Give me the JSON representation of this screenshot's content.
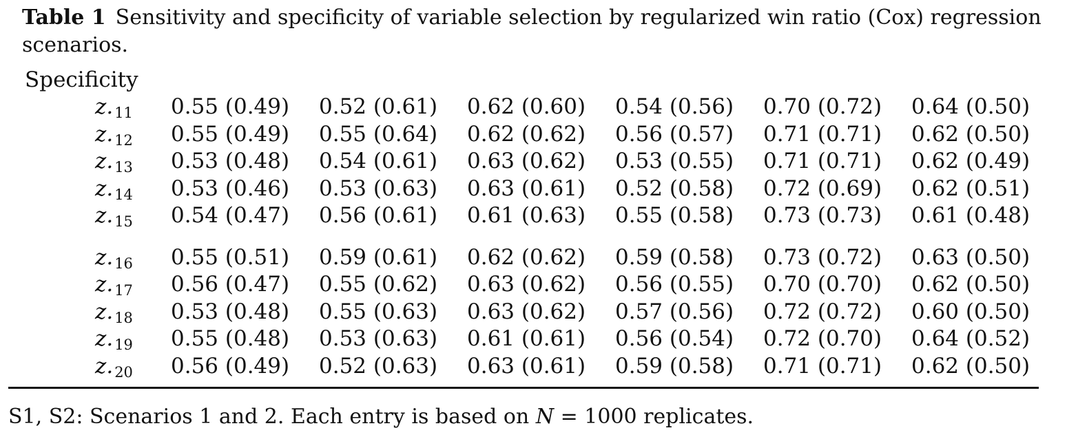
{
  "caption": {
    "label": "Table 1",
    "text_line1": "Sensitivity and specificity of variable selection by regularized win ratio (Cox) regression",
    "text_line2": "scenarios."
  },
  "section_title": "Specificity",
  "rows": [
    {
      "var_base": "z.",
      "var_sub": "11",
      "values": [
        "0.55 (0.49)",
        "0.52 (0.61)",
        "0.62 (0.60)",
        "0.54 (0.56)",
        "0.70 (0.72)",
        "0.64 (0.50)"
      ]
    },
    {
      "var_base": "z.",
      "var_sub": "12",
      "values": [
        "0.55 (0.49)",
        "0.55 (0.64)",
        "0.62 (0.62)",
        "0.56 (0.57)",
        "0.71 (0.71)",
        "0.62 (0.50)"
      ]
    },
    {
      "var_base": "z.",
      "var_sub": "13",
      "values": [
        "0.53 (0.48)",
        "0.54 (0.61)",
        "0.63 (0.62)",
        "0.53 (0.55)",
        "0.71 (0.71)",
        "0.62 (0.49)"
      ]
    },
    {
      "var_base": "z.",
      "var_sub": "14",
      "values": [
        "0.53 (0.46)",
        "0.53 (0.63)",
        "0.63 (0.61)",
        "0.52 (0.58)",
        "0.72 (0.69)",
        "0.62 (0.51)"
      ]
    },
    {
      "var_base": "z.",
      "var_sub": "15",
      "values": [
        "0.54 (0.47)",
        "0.56 (0.61)",
        "0.61 (0.63)",
        "0.55 (0.58)",
        "0.73 (0.73)",
        "0.61 (0.48)"
      ]
    },
    {
      "var_base": "z.",
      "var_sub": "16",
      "values": [
        "0.55 (0.51)",
        "0.59 (0.61)",
        "0.62 (0.62)",
        "0.59 (0.58)",
        "0.73 (0.72)",
        "0.63 (0.50)"
      ]
    },
    {
      "var_base": "z.",
      "var_sub": "17",
      "values": [
        "0.56 (0.47)",
        "0.55 (0.62)",
        "0.63 (0.62)",
        "0.56 (0.55)",
        "0.70 (0.70)",
        "0.62 (0.50)"
      ]
    },
    {
      "var_base": "z.",
      "var_sub": "18",
      "values": [
        "0.53 (0.48)",
        "0.55 (0.63)",
        "0.63 (0.62)",
        "0.57 (0.56)",
        "0.72 (0.72)",
        "0.60 (0.50)"
      ]
    },
    {
      "var_base": "z.",
      "var_sub": "19",
      "values": [
        "0.55 (0.48)",
        "0.53 (0.63)",
        "0.61 (0.61)",
        "0.56 (0.54)",
        "0.72 (0.70)",
        "0.64 (0.52)"
      ]
    },
    {
      "var_base": "z.",
      "var_sub": "20",
      "values": [
        "0.56 (0.49)",
        "0.52 (0.63)",
        "0.63 (0.61)",
        "0.59 (0.58)",
        "0.71 (0.71)",
        "0.62 (0.50)"
      ]
    }
  ],
  "footnote": {
    "before_N": "S1, S2: Scenarios 1 and 2. Each entry is based on",
    "N_symbol": "N",
    "after_N": "= 1000 replicates."
  }
}
